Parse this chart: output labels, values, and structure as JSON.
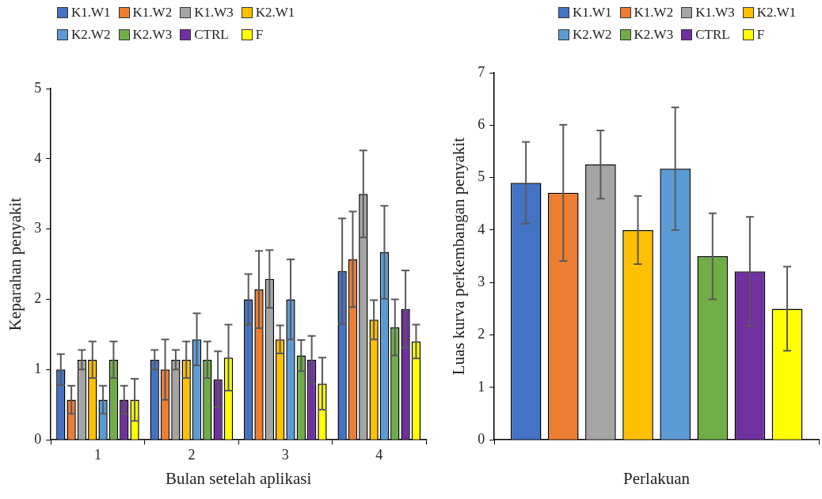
{
  "chart_data": [
    {
      "type": "bar",
      "xlabel": "Bulan setelah aplikasi",
      "ylabel": "Keparahan penyakit",
      "categories": [
        "1",
        "2",
        "3",
        "4"
      ],
      "ylim": [
        0,
        5
      ],
      "yticks": [
        0,
        1,
        2,
        3,
        4,
        5
      ],
      "grid": false,
      "legend": "top",
      "series": [
        {
          "name": "K1.W1",
          "color": "#4472c4",
          "values": [
            1.0,
            1.14,
            2.0,
            2.4
          ],
          "errors": [
            0.22,
            0.14,
            0.36,
            0.75
          ]
        },
        {
          "name": "K1.W2",
          "color": "#ed7d31",
          "values": [
            0.57,
            1.0,
            2.14,
            2.57
          ],
          "errors": [
            0.2,
            0.43,
            0.55,
            0.68
          ]
        },
        {
          "name": "K1.W3",
          "color": "#a5a5a5",
          "values": [
            1.14,
            1.14,
            2.29,
            3.5
          ],
          "errors": [
            0.14,
            0.14,
            0.41,
            0.62
          ]
        },
        {
          "name": "K2.W1",
          "color": "#ffc000",
          "values": [
            1.14,
            1.14,
            1.43,
            1.71
          ],
          "errors": [
            0.26,
            0.26,
            0.2,
            0.28
          ]
        },
        {
          "name": "K2.W2",
          "color": "#5b9bd5",
          "values": [
            0.57,
            1.43,
            2.0,
            2.67
          ],
          "errors": [
            0.2,
            0.37,
            0.57,
            0.66
          ]
        },
        {
          "name": "K2.W3",
          "color": "#70ad47",
          "values": [
            1.14,
            1.14,
            1.2,
            1.6
          ],
          "errors": [
            0.26,
            0.26,
            0.22,
            0.4
          ]
        },
        {
          "name": "CTRL",
          "color": "#7030a0",
          "values": [
            0.57,
            0.86,
            1.14,
            1.86
          ],
          "errors": [
            0.2,
            0.4,
            0.34,
            0.55
          ]
        },
        {
          "name": "F",
          "color": "#ffff00",
          "values": [
            0.57,
            1.17,
            0.8,
            1.4
          ],
          "errors": [
            0.3,
            0.47,
            0.37,
            0.24
          ]
        }
      ]
    },
    {
      "type": "bar",
      "xlabel": "Perlakuan",
      "ylabel": "Luas kurva perkembangan penyakit",
      "categories": [
        null
      ],
      "ylim": [
        0,
        7
      ],
      "yticks": [
        0,
        1,
        2,
        3,
        4,
        5,
        6,
        7
      ],
      "grid": false,
      "legend": "top",
      "series": [
        {
          "name": "K1.W1",
          "color": "#4472c4",
          "values": [
            4.9
          ],
          "errors": [
            0.78
          ]
        },
        {
          "name": "K1.W2",
          "color": "#ed7d31",
          "values": [
            4.71
          ],
          "errors": [
            1.3
          ]
        },
        {
          "name": "K1.W3",
          "color": "#a5a5a5",
          "values": [
            5.25
          ],
          "errors": [
            0.65
          ]
        },
        {
          "name": "K2.W1",
          "color": "#ffc000",
          "values": [
            4.0
          ],
          "errors": [
            0.65
          ]
        },
        {
          "name": "K2.W2",
          "color": "#5b9bd5",
          "values": [
            5.17
          ],
          "errors": [
            1.17
          ]
        },
        {
          "name": "K2.W3",
          "color": "#70ad47",
          "values": [
            3.5
          ],
          "errors": [
            0.82
          ]
        },
        {
          "name": "CTRL",
          "color": "#7030a0",
          "values": [
            3.21
          ],
          "errors": [
            1.04
          ]
        },
        {
          "name": "F",
          "color": "#ffff00",
          "values": [
            2.5
          ],
          "errors": [
            0.8
          ]
        }
      ]
    }
  ]
}
